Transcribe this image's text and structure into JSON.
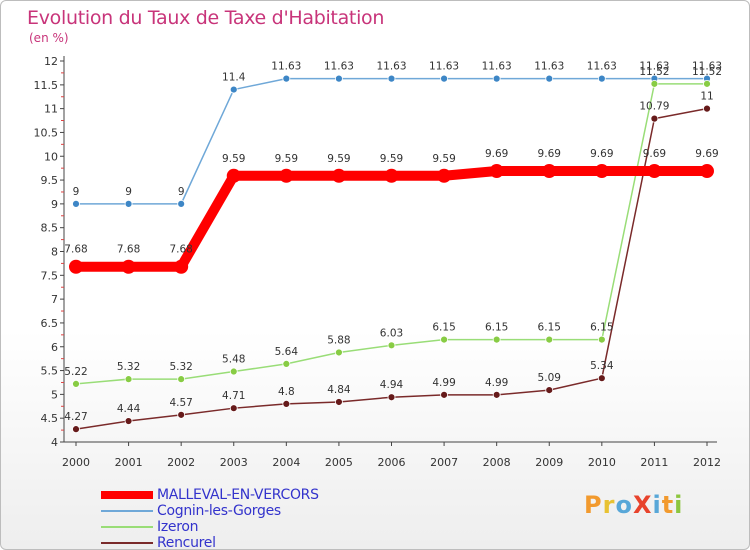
{
  "title": "Evolution du Taux de Taxe d'Habitation",
  "subtitle": "(en %)",
  "logo": {
    "text": "ProXiti",
    "letters": [
      "P",
      "r",
      "o",
      "X",
      "i",
      "t",
      "i"
    ],
    "colors": [
      "#f29a2e",
      "#e8c232",
      "#58a7d8",
      "#e8432c",
      "#58a7d8",
      "#f29a2e",
      "#8cc63f"
    ]
  },
  "chart_data": {
    "type": "line",
    "x": [
      "2000",
      "2001",
      "2002",
      "2003",
      "2004",
      "2005",
      "2006",
      "2007",
      "2008",
      "2009",
      "2010",
      "2011",
      "2012"
    ],
    "ylim": [
      4,
      12
    ],
    "yticks": [
      "4",
      "4.5",
      "5",
      "5.5",
      "6",
      "6.5",
      "7",
      "7.5",
      "8",
      "8.5",
      "9",
      "9.5",
      "10",
      "10.5",
      "11",
      "11.5",
      "12"
    ],
    "grid": false,
    "legend_position": "bottom-left",
    "series": [
      {
        "name": "MALLEVAL-EN-VERCORS",
        "color": "#ff0000",
        "width": 10,
        "marker": 7,
        "values": [
          7.68,
          7.68,
          7.68,
          9.59,
          9.59,
          9.59,
          9.59,
          9.59,
          9.69,
          9.69,
          9.69,
          9.69,
          9.69
        ],
        "labels": [
          "7.68",
          "7.68",
          "7.68",
          "9.59",
          "9.59",
          "9.59",
          "9.59",
          "9.59",
          "9.69",
          "9.69",
          "9.69",
          "9.69",
          "9.69"
        ]
      },
      {
        "name": "Cognin-les-Gorges",
        "color": "#6fa8d8",
        "width": 1.5,
        "marker": 3.5,
        "markerFill": "#3d86c6",
        "values": [
          9,
          9,
          9,
          11.4,
          11.63,
          11.63,
          11.63,
          11.63,
          11.63,
          11.63,
          11.63,
          11.63,
          11.63
        ],
        "labels": [
          "9",
          "9",
          "9",
          "11.4",
          "11.63",
          "11.63",
          "11.63",
          "11.63",
          "11.63",
          "11.63",
          "11.63",
          "11.63",
          "11.63"
        ]
      },
      {
        "name": "Izeron",
        "color": "#99dd77",
        "width": 1.5,
        "marker": 3.5,
        "markerFill": "#88cc44",
        "values": [
          5.22,
          5.32,
          5.32,
          5.48,
          5.64,
          5.88,
          6.03,
          6.15,
          6.15,
          6.15,
          6.15,
          11.52,
          11.52
        ],
        "labels": [
          "5.22",
          "5.32",
          "5.32",
          "5.48",
          "5.64",
          "5.88",
          "6.03",
          "6.15",
          "6.15",
          "6.15",
          "6.15",
          "11.52",
          "11.52"
        ]
      },
      {
        "name": "Rencurel",
        "color": "#7a2a2a",
        "width": 1.5,
        "marker": 3.5,
        "markerFill": "#661a1a",
        "values": [
          4.27,
          4.44,
          4.57,
          4.71,
          4.8,
          4.84,
          4.94,
          4.99,
          4.99,
          5.09,
          5.34,
          10.79,
          11
        ],
        "labels": [
          "4.27",
          "4.44",
          "4.57",
          "4.71",
          "4.8",
          "4.84",
          "4.94",
          "4.99",
          "4.99",
          "5.09",
          "5.34",
          "10.79",
          "11"
        ]
      }
    ]
  }
}
